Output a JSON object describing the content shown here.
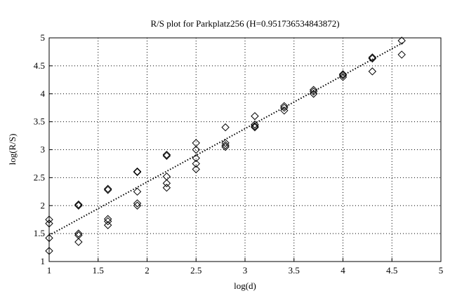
{
  "chart_data": {
    "type": "scatter",
    "title": "R/S plot for Parkplatz256 (H=0.951736534843872)",
    "x_label": "log(d)",
    "y_label": "log(R/S)",
    "xlim": [
      1,
      5
    ],
    "ylim": [
      1,
      5
    ],
    "xticks": [
      1,
      1.5,
      2,
      2.5,
      3,
      3.5,
      4,
      4.5,
      5
    ],
    "yticks": [
      1,
      1.5,
      2,
      2.5,
      3,
      3.5,
      4,
      4.5,
      5
    ],
    "grid": true,
    "series": [
      {
        "name": "R/S",
        "marker": "diamond",
        "color": "#000000",
        "x": [
          1,
          1,
          1,
          1,
          1.3,
          1.3,
          1.3,
          1.3,
          1.3,
          1.6,
          1.6,
          1.6,
          1.6,
          1.6,
          1.9,
          1.9,
          1.9,
          1.9,
          1.9,
          2.2,
          2.2,
          2.2,
          2.2,
          2.2,
          2.5,
          2.5,
          2.5,
          2.5,
          2.5,
          2.8,
          2.8,
          2.8,
          2.8,
          3.1,
          3.1,
          3.1,
          3.1,
          3.4,
          3.4,
          3.4,
          3.7,
          3.7,
          3.7,
          4,
          4,
          4,
          4.3,
          4.3,
          4.3,
          4.6,
          4.6
        ],
        "values": [
          1.75,
          1.68,
          1.42,
          1.19,
          2.02,
          2.0,
          1.5,
          1.47,
          1.35,
          2.3,
          2.28,
          1.76,
          1.72,
          1.65,
          2.61,
          2.6,
          2.04,
          2.0,
          2.25,
          2.91,
          2.89,
          2.52,
          2.4,
          2.32,
          3.12,
          3.0,
          2.85,
          2.75,
          2.65,
          3.4,
          3.12,
          3.08,
          3.05,
          3.6,
          3.45,
          3.42,
          3.4,
          3.78,
          3.75,
          3.7,
          4.07,
          4.04,
          4.0,
          4.35,
          4.33,
          4.3,
          4.65,
          4.63,
          4.4,
          4.95,
          4.7
        ]
      },
      {
        "name": "fit",
        "marker": "dotted-line",
        "color": "#000000",
        "x": [
          1,
          4.62
        ],
        "values": [
          1.47,
          4.92
        ]
      }
    ]
  }
}
